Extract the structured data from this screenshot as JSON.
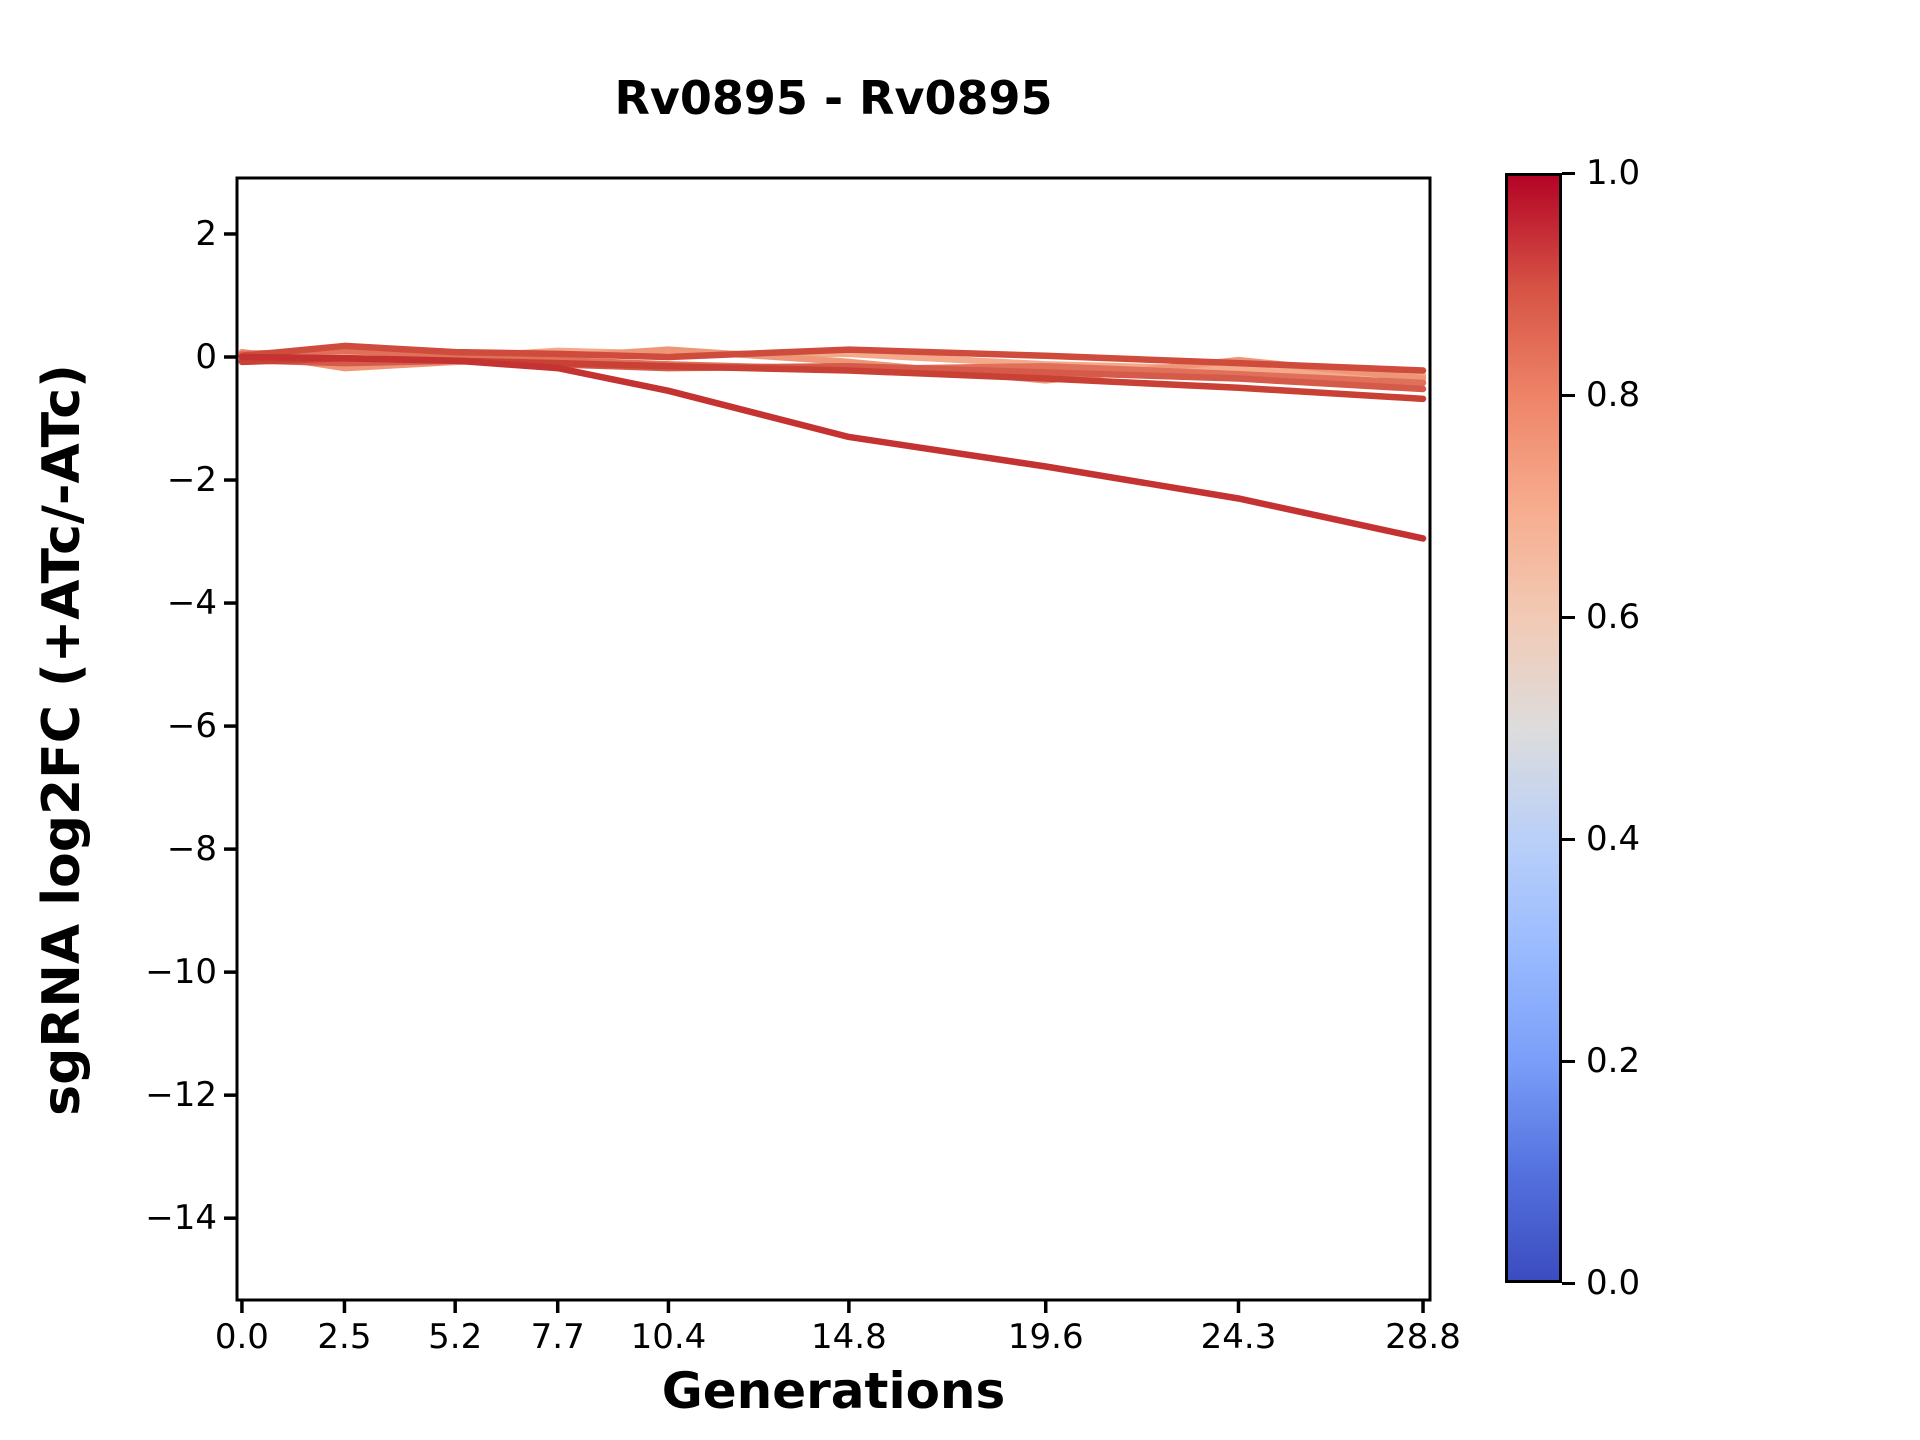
{
  "title": "Rv0895 - Rv0895",
  "xlabel": "Generations",
  "ylabel": "sgRNA log2FC (+ATc/-ATc)",
  "chart_data": {
    "type": "line",
    "title": "Rv0895 - Rv0895",
    "xlabel": "Generations",
    "ylabel": "sgRNA log2FC (+ATc/-ATc)",
    "grid": false,
    "legend": "none (colorbar encodes line color value)",
    "x": [
      0.0,
      2.5,
      5.2,
      7.7,
      10.4,
      14.8,
      19.6,
      24.3,
      28.8
    ],
    "xtick_labels": [
      "0.0",
      "2.5",
      "5.2",
      "7.7",
      "10.4",
      "14.8",
      "19.6",
      "24.3",
      "28.8"
    ],
    "ytick_values": [
      2,
      0,
      -2,
      -4,
      -6,
      -8,
      -10,
      -12,
      -14
    ],
    "ytick_labels": [
      "2",
      "0",
      "−2",
      "−4",
      "−6",
      "−8",
      "−10",
      "−12",
      "−14"
    ],
    "xlim": [
      -0.12,
      28.97
    ],
    "ylim": [
      -15.33,
      2.91
    ],
    "series": [
      {
        "name": "line-7",
        "color": "#f3a98a",
        "colorbar_value": 0.78,
        "values": [
          0.02,
          0.08,
          0.0,
          0.1,
          0.05,
          0.05,
          -0.12,
          -0.2,
          -0.3
        ]
      },
      {
        "name": "line-6",
        "color": "#ee9678",
        "colorbar_value": 0.8,
        "values": [
          0.08,
          -0.18,
          -0.08,
          0.0,
          0.12,
          -0.08,
          -0.38,
          -0.05,
          -0.35
        ]
      },
      {
        "name": "line-5",
        "color": "#e0705a",
        "colorbar_value": 0.85,
        "values": [
          0.05,
          0.1,
          0.02,
          -0.05,
          -0.12,
          -0.2,
          -0.15,
          -0.28,
          -0.42
        ]
      },
      {
        "name": "line-4",
        "color": "#d55a4a",
        "colorbar_value": 0.88,
        "values": [
          -0.05,
          -0.1,
          -0.06,
          -0.12,
          -0.18,
          -0.15,
          -0.25,
          -0.35,
          -0.52
        ]
      },
      {
        "name": "line-3",
        "color": "#cf4b3c",
        "colorbar_value": 0.9,
        "values": [
          0.02,
          0.18,
          0.08,
          0.05,
          0.0,
          0.12,
          0.02,
          -0.1,
          -0.22
        ]
      },
      {
        "name": "line-2",
        "color": "#c94034",
        "colorbar_value": 0.93,
        "values": [
          -0.08,
          -0.02,
          -0.06,
          -0.1,
          -0.15,
          -0.22,
          -0.35,
          -0.5,
          -0.68
        ]
      },
      {
        "name": "line-1",
        "color": "#c43331",
        "colorbar_value": 0.97,
        "values": [
          0.0,
          -0.02,
          -0.06,
          -0.18,
          -0.55,
          -1.3,
          -1.78,
          -2.3,
          -2.95
        ]
      }
    ],
    "colorbar": {
      "cmap": "coolwarm",
      "tick_labels": [
        "1.0",
        "0.8",
        "0.6",
        "0.4",
        "0.2",
        "0.0"
      ],
      "tick_values": [
        1.0,
        0.8,
        0.6,
        0.4,
        0.2,
        0.0
      ],
      "gradient_stops": [
        {
          "pos": 0.0,
          "color": "#3b4cc0"
        },
        {
          "pos": 0.1,
          "color": "#5572df"
        },
        {
          "pos": 0.2,
          "color": "#7b9ff9"
        },
        {
          "pos": 0.3,
          "color": "#9abbff"
        },
        {
          "pos": 0.4,
          "color": "#bad0f8"
        },
        {
          "pos": 0.5,
          "color": "#dddcdc"
        },
        {
          "pos": 0.6,
          "color": "#f2cab5"
        },
        {
          "pos": 0.7,
          "color": "#f7ac8e"
        },
        {
          "pos": 0.8,
          "color": "#ee8468"
        },
        {
          "pos": 0.9,
          "color": "#d65244"
        },
        {
          "pos": 1.0,
          "color": "#b40426"
        }
      ]
    }
  }
}
